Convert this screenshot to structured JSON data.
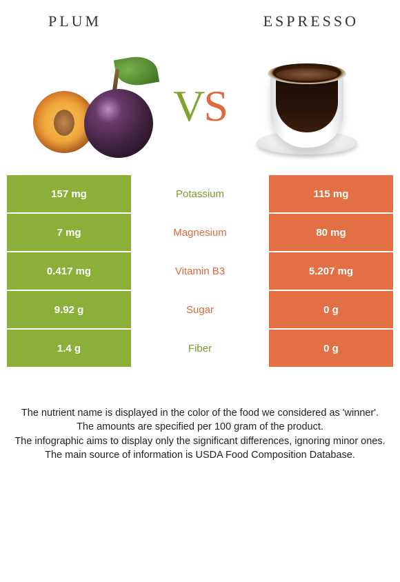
{
  "header": {
    "left": "PLUM",
    "right": "ESPRESSO"
  },
  "vs": {
    "v": "V",
    "s": "S"
  },
  "colors": {
    "left": "#8bb03a",
    "right": "#e36f45",
    "left_text": "#7a9a2f",
    "right_text": "#e0683e"
  },
  "rows": [
    {
      "left": "157 mg",
      "mid": "Potassium",
      "right": "115 mg",
      "winner": "left"
    },
    {
      "left": "7 mg",
      "mid": "Magnesium",
      "right": "80 mg",
      "winner": "right"
    },
    {
      "left": "0.417 mg",
      "mid": "Vitamin B3",
      "right": "5.207 mg",
      "winner": "right"
    },
    {
      "left": "9.92 g",
      "mid": "Sugar",
      "right": "0 g",
      "winner": "right"
    },
    {
      "left": "1.4 g",
      "mid": "Fiber",
      "right": "0 g",
      "winner": "left"
    }
  ],
  "footer": {
    "line1": "The nutrient name is displayed in the color of the food we considered as 'winner'.",
    "line2": "The amounts are specified per 100 gram of the product.",
    "line3": "The infographic aims to display only the significant differences, ignoring minor ones.",
    "line4": "The main source of information is USDA Food Composition Database."
  }
}
